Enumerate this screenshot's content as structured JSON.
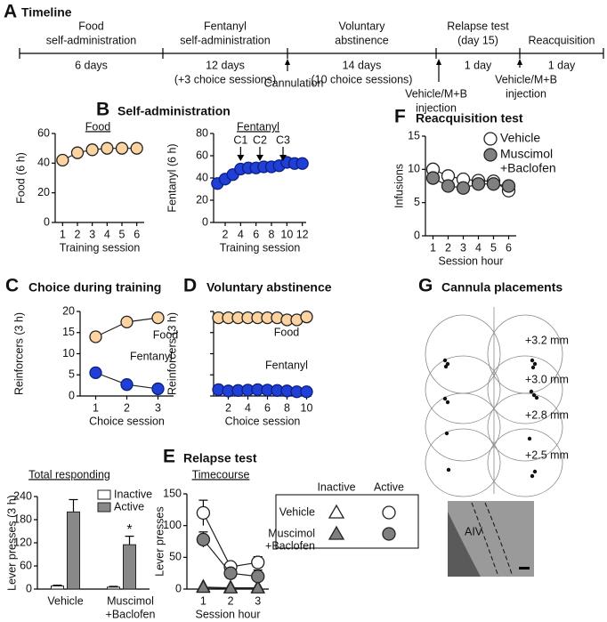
{
  "panels": [
    {
      "label": "A",
      "title": "Timeline"
    },
    {
      "label": "B",
      "title": "Self-administration"
    },
    {
      "label": "C",
      "title": "Choice during training"
    },
    {
      "label": "D",
      "title": "Voluntary abstinence"
    },
    {
      "label": "E",
      "title": "Relapse test"
    },
    {
      "label": "F",
      "title": "Reacquisition test"
    },
    {
      "label": "G",
      "title": "Cannula placements"
    }
  ],
  "timeline": {
    "phases": [
      {
        "name": [
          "Food",
          "self-administration"
        ],
        "duration": [
          "6 days"
        ]
      },
      {
        "name": [
          "Fentanyl",
          "self-administration"
        ],
        "duration": [
          "12 days",
          "(+3 choice sessions)"
        ]
      },
      {
        "name": [
          "Voluntary",
          "abstinence"
        ],
        "duration": [
          "14 days",
          "(10 choice sessions)"
        ]
      },
      {
        "name": [
          "Relapse test",
          "(day 15)"
        ],
        "duration": [
          "1 day"
        ]
      },
      {
        "name": [
          "Reacquisition"
        ],
        "duration": [
          "1 day"
        ]
      }
    ],
    "events": [
      {
        "name": [
          "Cannulation"
        ]
      },
      {
        "name": [
          "Vehicle/M+B",
          "injection"
        ]
      },
      {
        "name": [
          "Vehicle/M+B",
          "injection"
        ]
      }
    ]
  },
  "chart_data": [
    {
      "type": "line",
      "title": "Food",
      "ylabel": "Food (6 h)",
      "xlabel": "Training session",
      "x": [
        1,
        2,
        3,
        4,
        5,
        6
      ],
      "values": [
        42,
        47,
        49,
        50,
        50,
        50
      ],
      "color": "#fcd3a1",
      "xlim": [
        0.5,
        6.5
      ],
      "xticks": [
        1,
        2,
        3,
        4,
        5,
        6
      ],
      "ylim": [
        0,
        60
      ],
      "yticks": [
        0,
        20,
        40,
        60
      ]
    },
    {
      "type": "line",
      "title": "Fentanyl",
      "ylabel": "Fentanyl (6 h)",
      "xlabel": "Training session",
      "x": [
        1,
        2,
        3,
        4,
        5,
        6,
        7,
        8,
        9,
        10,
        11,
        12
      ],
      "values": [
        35,
        39,
        43,
        48,
        49,
        49,
        50,
        50,
        51,
        54,
        53,
        53
      ],
      "color": "#1f3fd6",
      "xlim": [
        0.5,
        12.5
      ],
      "xticks": [
        2,
        4,
        6,
        8,
        10,
        12
      ],
      "ylim": [
        0,
        80
      ],
      "yticks": [
        0,
        20,
        40,
        60,
        80
      ],
      "annotations": [
        {
          "text": "C1",
          "x": 4
        },
        {
          "text": "C2",
          "x": 6.5
        },
        {
          "text": "C3",
          "x": 9.5
        }
      ]
    },
    {
      "type": "line",
      "ylabel": "Reinforcers (3 h)",
      "xlabel": "Choice session",
      "x": [
        1,
        2,
        3
      ],
      "series": [
        {
          "name": "Food",
          "color": "#fcd3a1",
          "values": [
            14,
            17.5,
            18.5
          ]
        },
        {
          "name": "Fentanyl",
          "color": "#1f3fd6",
          "values": [
            5.5,
            2.7,
            1.7
          ]
        }
      ],
      "xlim": [
        0.5,
        3.5
      ],
      "xticks": [
        1,
        2,
        3
      ],
      "ylim": [
        0,
        20
      ],
      "yticks": [
        0,
        5,
        10,
        15,
        20
      ]
    },
    {
      "type": "line",
      "ylabel": "Reinforcers (3 h)",
      "xlabel": "Choice session",
      "x": [
        1,
        2,
        3,
        4,
        5,
        6,
        7,
        8,
        9,
        10
      ],
      "series": [
        {
          "name": "Food",
          "color": "#fcd3a1",
          "values": [
            18.5,
            18.5,
            18.5,
            18.5,
            18.5,
            18.5,
            18.5,
            18,
            18,
            18.7
          ]
        },
        {
          "name": "Fentanyl",
          "color": "#1f3fd6",
          "values": [
            1.5,
            1.2,
            1.3,
            1.4,
            1.5,
            1.4,
            1.3,
            1.2,
            1,
            1
          ]
        }
      ],
      "xlim": [
        0.5,
        10.5
      ],
      "xticks": [
        2,
        4,
        6,
        8,
        10
      ],
      "ylim": [
        0,
        20
      ],
      "yticks": [
        0,
        5,
        10,
        15,
        20
      ],
      "ytick_labels": false
    },
    {
      "type": "bar",
      "title": "Total responding",
      "ylabel": "Lever presses (3 h)",
      "categories": [
        [
          "Vehicle"
        ],
        [
          "Muscimol",
          "+Baclofen"
        ]
      ],
      "series": [
        {
          "name": "Inactive",
          "color": "#ffffff",
          "values": [
            8,
            5
          ],
          "errors": [
            2,
            2
          ]
        },
        {
          "name": "Active",
          "color": "#888888",
          "values": [
            200,
            115
          ],
          "errors": [
            32,
            22
          ]
        }
      ],
      "ylim": [
        0,
        240
      ],
      "yticks": [
        0,
        60,
        120,
        180,
        240
      ],
      "annotations": [
        {
          "text": "*",
          "category": 1
        }
      ]
    },
    {
      "type": "line",
      "title": "Timecourse",
      "ylabel": "Lever presses",
      "xlabel": "Session hour",
      "x": [
        1,
        2,
        3
      ],
      "measures": [
        "Inactive",
        "Active"
      ],
      "groups": [
        {
          "name": [
            "Vehicle"
          ],
          "color": "#ffffff",
          "inactive": [
            3,
            2,
            2
          ],
          "active": [
            120,
            35,
            42
          ],
          "active_errors": [
            20,
            6,
            9
          ]
        },
        {
          "name": [
            "Muscimol",
            "+Baclofen"
          ],
          "color": "#808080",
          "inactive": [
            2,
            1,
            1
          ],
          "active": [
            78,
            25,
            20
          ],
          "active_errors": [
            12,
            4,
            10
          ]
        }
      ],
      "xlim": [
        0.4,
        3.4
      ],
      "xticks": [
        1,
        2,
        3
      ],
      "ylim": [
        0,
        150
      ],
      "yticks": [
        0,
        50,
        100,
        150
      ]
    },
    {
      "type": "line",
      "ylabel": "Infusions",
      "xlabel": "Session hour",
      "x": [
        1,
        2,
        3,
        4,
        5,
        6
      ],
      "series": [
        {
          "name": [
            "Vehicle"
          ],
          "color": "#ffffff",
          "values": [
            10,
            9,
            8.5,
            8.3,
            8.2,
            6.8
          ]
        },
        {
          "name": [
            "Muscimol",
            "+Baclofen"
          ],
          "color": "#808080",
          "values": [
            8.7,
            7.5,
            7.2,
            7.8,
            7.8,
            7.5
          ]
        }
      ],
      "xlim": [
        0.5,
        6.5
      ],
      "xticks": [
        1,
        2,
        3,
        4,
        5,
        6
      ],
      "ylim": [
        0,
        15
      ],
      "yticks": [
        0,
        5,
        10,
        15
      ]
    }
  ],
  "placements": {
    "levels": [
      "+3.2 mm",
      "+3.0 mm",
      "+2.8 mm",
      "+2.5 mm"
    ],
    "region": "AIV"
  }
}
